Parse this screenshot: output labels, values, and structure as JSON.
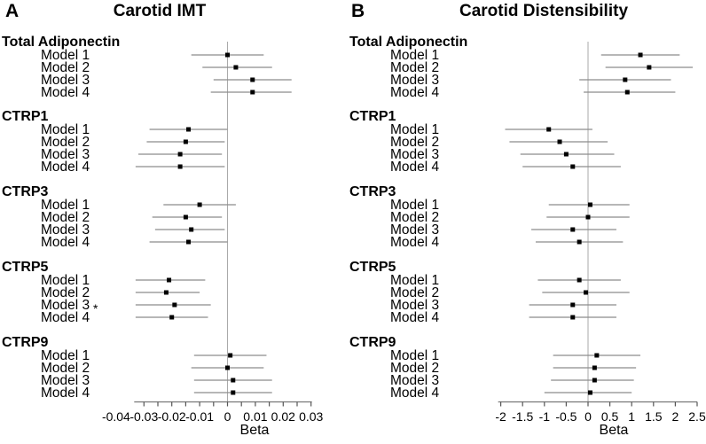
{
  "colors": {
    "background": "#ffffff",
    "text": "#000000",
    "marker": "#000000",
    "ci_line": "#8c8c8c",
    "axis": "#777777",
    "tick": "#555555",
    "reference_line": "#aaaaaa"
  },
  "chart_data": [
    {
      "type": "forest",
      "panel": "A",
      "title": "Carotid IMT",
      "xlabel": "Beta",
      "reference_line": 0,
      "x_axis": {
        "range": [
          -0.0335,
          0.0303
        ],
        "tick_values": [
          -0.03,
          -0.025,
          -0.02,
          -0.015,
          -0.01,
          -0.005,
          0,
          0.005,
          0.01,
          0.015,
          0.02,
          0.025,
          0.03
        ],
        "label_values": [
          -0.04,
          -0.03,
          -0.02,
          -0.01,
          0,
          0.01,
          0.02,
          0.03
        ],
        "labels": [
          "-0.04",
          "-0.03",
          "-0.02",
          "-0.01",
          "0",
          "0.01",
          "0.02",
          "0.03"
        ]
      },
      "groups": [
        {
          "name": "Total Adiponectin",
          "models": [
            {
              "label": "Model 1",
              "beta": 0.0,
              "ci_low": -0.013,
              "ci_high": 0.013
            },
            {
              "label": "Model 2",
              "beta": 0.003,
              "ci_low": -0.009,
              "ci_high": 0.016
            },
            {
              "label": "Model 3",
              "beta": 0.009,
              "ci_low": -0.005,
              "ci_high": 0.023
            },
            {
              "label": "Model 4",
              "beta": 0.009,
              "ci_low": -0.006,
              "ci_high": 0.023
            }
          ]
        },
        {
          "name": "CTRP1",
          "models": [
            {
              "label": "Model 1",
              "beta": -0.014,
              "ci_low": -0.028,
              "ci_high": 0.0
            },
            {
              "label": "Model 2",
              "beta": -0.015,
              "ci_low": -0.029,
              "ci_high": -0.001
            },
            {
              "label": "Model 3",
              "beta": -0.017,
              "ci_low": -0.032,
              "ci_high": -0.002
            },
            {
              "label": "Model 4",
              "beta": -0.017,
              "ci_low": -0.033,
              "ci_high": -0.001
            }
          ]
        },
        {
          "name": "CTRP3",
          "models": [
            {
              "label": "Model 1",
              "beta": -0.01,
              "ci_low": -0.023,
              "ci_high": 0.003
            },
            {
              "label": "Model 2",
              "beta": -0.015,
              "ci_low": -0.027,
              "ci_high": -0.002
            },
            {
              "label": "Model 3",
              "beta": -0.013,
              "ci_low": -0.026,
              "ci_high": -0.001
            },
            {
              "label": "Model 4",
              "beta": -0.014,
              "ci_low": -0.028,
              "ci_high": 0.0
            }
          ]
        },
        {
          "name": "CTRP5",
          "models": [
            {
              "label": "Model 1",
              "beta": -0.021,
              "ci_low": -0.033,
              "ci_high": -0.008
            },
            {
              "label": "Model 2",
              "beta": -0.022,
              "ci_low": -0.033,
              "ci_high": -0.01
            },
            {
              "label": "Model 3",
              "beta": -0.019,
              "ci_low": -0.033,
              "ci_high": -0.006,
              "flag": "*"
            },
            {
              "label": "Model 4",
              "beta": -0.02,
              "ci_low": -0.033,
              "ci_high": -0.007
            }
          ]
        },
        {
          "name": "CTRP9",
          "models": [
            {
              "label": "Model 1",
              "beta": 0.001,
              "ci_low": -0.012,
              "ci_high": 0.014
            },
            {
              "label": "Model 2",
              "beta": 0.0,
              "ci_low": -0.013,
              "ci_high": 0.013
            },
            {
              "label": "Model 3",
              "beta": 0.002,
              "ci_low": -0.012,
              "ci_high": 0.016
            },
            {
              "label": "Model 4",
              "beta": 0.002,
              "ci_low": -0.012,
              "ci_high": 0.016
            }
          ]
        }
      ]
    },
    {
      "type": "forest",
      "panel": "B",
      "title": "Carotid Distensibility",
      "xlabel": "Beta",
      "reference_line": 0,
      "x_axis": {
        "range": [
          -2.06,
          2.5
        ],
        "tick_values": [
          -2,
          -1.5,
          -1,
          -0.5,
          0,
          0.5,
          1,
          1.5,
          2,
          2.5
        ],
        "label_values": [
          -2,
          -1.5,
          -1,
          -0.5,
          0,
          0.5,
          1,
          1.5,
          2,
          2.5
        ],
        "labels": [
          "-2",
          "-1.5",
          "-1",
          "-0.5",
          "0",
          "0.5",
          "1",
          "1.5",
          "2",
          "2.5"
        ]
      },
      "groups": [
        {
          "name": "Total Adiponectin",
          "models": [
            {
              "label": "Model 1",
              "beta": 1.2,
              "ci_low": 0.3,
              "ci_high": 2.1
            },
            {
              "label": "Model 2",
              "beta": 1.4,
              "ci_low": 0.4,
              "ci_high": 2.4
            },
            {
              "label": "Model 3",
              "beta": 0.85,
              "ci_low": -0.2,
              "ci_high": 1.9
            },
            {
              "label": "Model 4",
              "beta": 0.9,
              "ci_low": -0.1,
              "ci_high": 2.0
            }
          ]
        },
        {
          "name": "CTRP1",
          "models": [
            {
              "label": "Model 1",
              "beta": -0.9,
              "ci_low": -1.9,
              "ci_high": 0.1
            },
            {
              "label": "Model 2",
              "beta": -0.65,
              "ci_low": -1.8,
              "ci_high": 0.45
            },
            {
              "label": "Model 3",
              "beta": -0.5,
              "ci_low": -1.55,
              "ci_high": 0.6
            },
            {
              "label": "Model 4",
              "beta": -0.35,
              "ci_low": -1.5,
              "ci_high": 0.75
            }
          ]
        },
        {
          "name": "CTRP3",
          "models": [
            {
              "label": "Model 1",
              "beta": 0.05,
              "ci_low": -0.9,
              "ci_high": 0.95
            },
            {
              "label": "Model 2",
              "beta": 0.0,
              "ci_low": -0.95,
              "ci_high": 0.95
            },
            {
              "label": "Model 3",
              "beta": -0.35,
              "ci_low": -1.3,
              "ci_high": 0.65
            },
            {
              "label": "Model 4",
              "beta": -0.2,
              "ci_low": -1.2,
              "ci_high": 0.8
            }
          ]
        },
        {
          "name": "CTRP5",
          "models": [
            {
              "label": "Model 1",
              "beta": -0.2,
              "ci_low": -1.15,
              "ci_high": 0.75
            },
            {
              "label": "Model 2",
              "beta": -0.05,
              "ci_low": -1.05,
              "ci_high": 0.95
            },
            {
              "label": "Model 3",
              "beta": -0.35,
              "ci_low": -1.35,
              "ci_high": 0.65
            },
            {
              "label": "Model 4",
              "beta": -0.35,
              "ci_low": -1.35,
              "ci_high": 0.65
            }
          ]
        },
        {
          "name": "CTRP9",
          "models": [
            {
              "label": "Model 1",
              "beta": 0.2,
              "ci_low": -0.8,
              "ci_high": 1.2
            },
            {
              "label": "Model 2",
              "beta": 0.15,
              "ci_low": -0.8,
              "ci_high": 1.1
            },
            {
              "label": "Model 3",
              "beta": 0.15,
              "ci_low": -0.85,
              "ci_high": 1.05
            },
            {
              "label": "Model 4",
              "beta": 0.05,
              "ci_low": -1.0,
              "ci_high": 1.0
            }
          ]
        }
      ]
    }
  ]
}
